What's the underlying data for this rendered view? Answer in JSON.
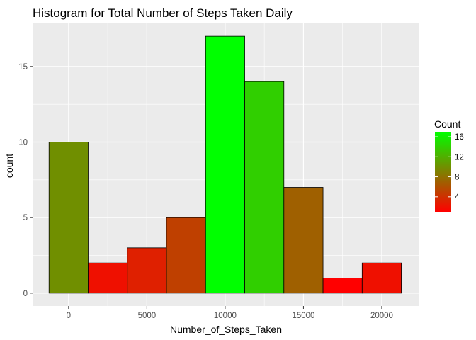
{
  "chart_data": {
    "type": "histogram",
    "title": "Histogram for Total Number of Steps Taken Daily",
    "xlabel": "Number_of_Steps_Taken",
    "ylabel": "count",
    "xlim": [
      -2300,
      22400
    ],
    "ylim": [
      -0.85,
      17.85
    ],
    "x_ticks": [
      0,
      5000,
      10000,
      15000,
      20000
    ],
    "x_tick_labels": [
      "0",
      "5000",
      "10000",
      "15000",
      "20000"
    ],
    "y_ticks": [
      0,
      5,
      10,
      15
    ],
    "y_tick_labels": [
      "0",
      "5",
      "10",
      "15"
    ],
    "bins": [
      {
        "x0": -1250,
        "x1": 1250,
        "count": 10
      },
      {
        "x0": 1250,
        "x1": 3750,
        "count": 2
      },
      {
        "x0": 3750,
        "x1": 6250,
        "count": 3
      },
      {
        "x0": 6250,
        "x1": 8750,
        "count": 5
      },
      {
        "x0": 8750,
        "x1": 11250,
        "count": 17
      },
      {
        "x0": 11250,
        "x1": 13750,
        "count": 14
      },
      {
        "x0": 13750,
        "x1": 16250,
        "count": 7
      },
      {
        "x0": 16250,
        "x1": 18750,
        "count": 1
      },
      {
        "x0": 18750,
        "x1": 21250,
        "count": 2
      }
    ],
    "fill_scale": {
      "low": "#ff0000",
      "high": "#00ff00",
      "min": 1,
      "max": 17
    },
    "legend": {
      "title": "Count",
      "breaks": [
        4,
        8,
        12,
        16
      ],
      "labels": [
        "4",
        "8",
        "12",
        "16"
      ],
      "placement": "right"
    },
    "grid": true,
    "panel_background": "#ebebeb",
    "bar_outline": "#000000"
  }
}
